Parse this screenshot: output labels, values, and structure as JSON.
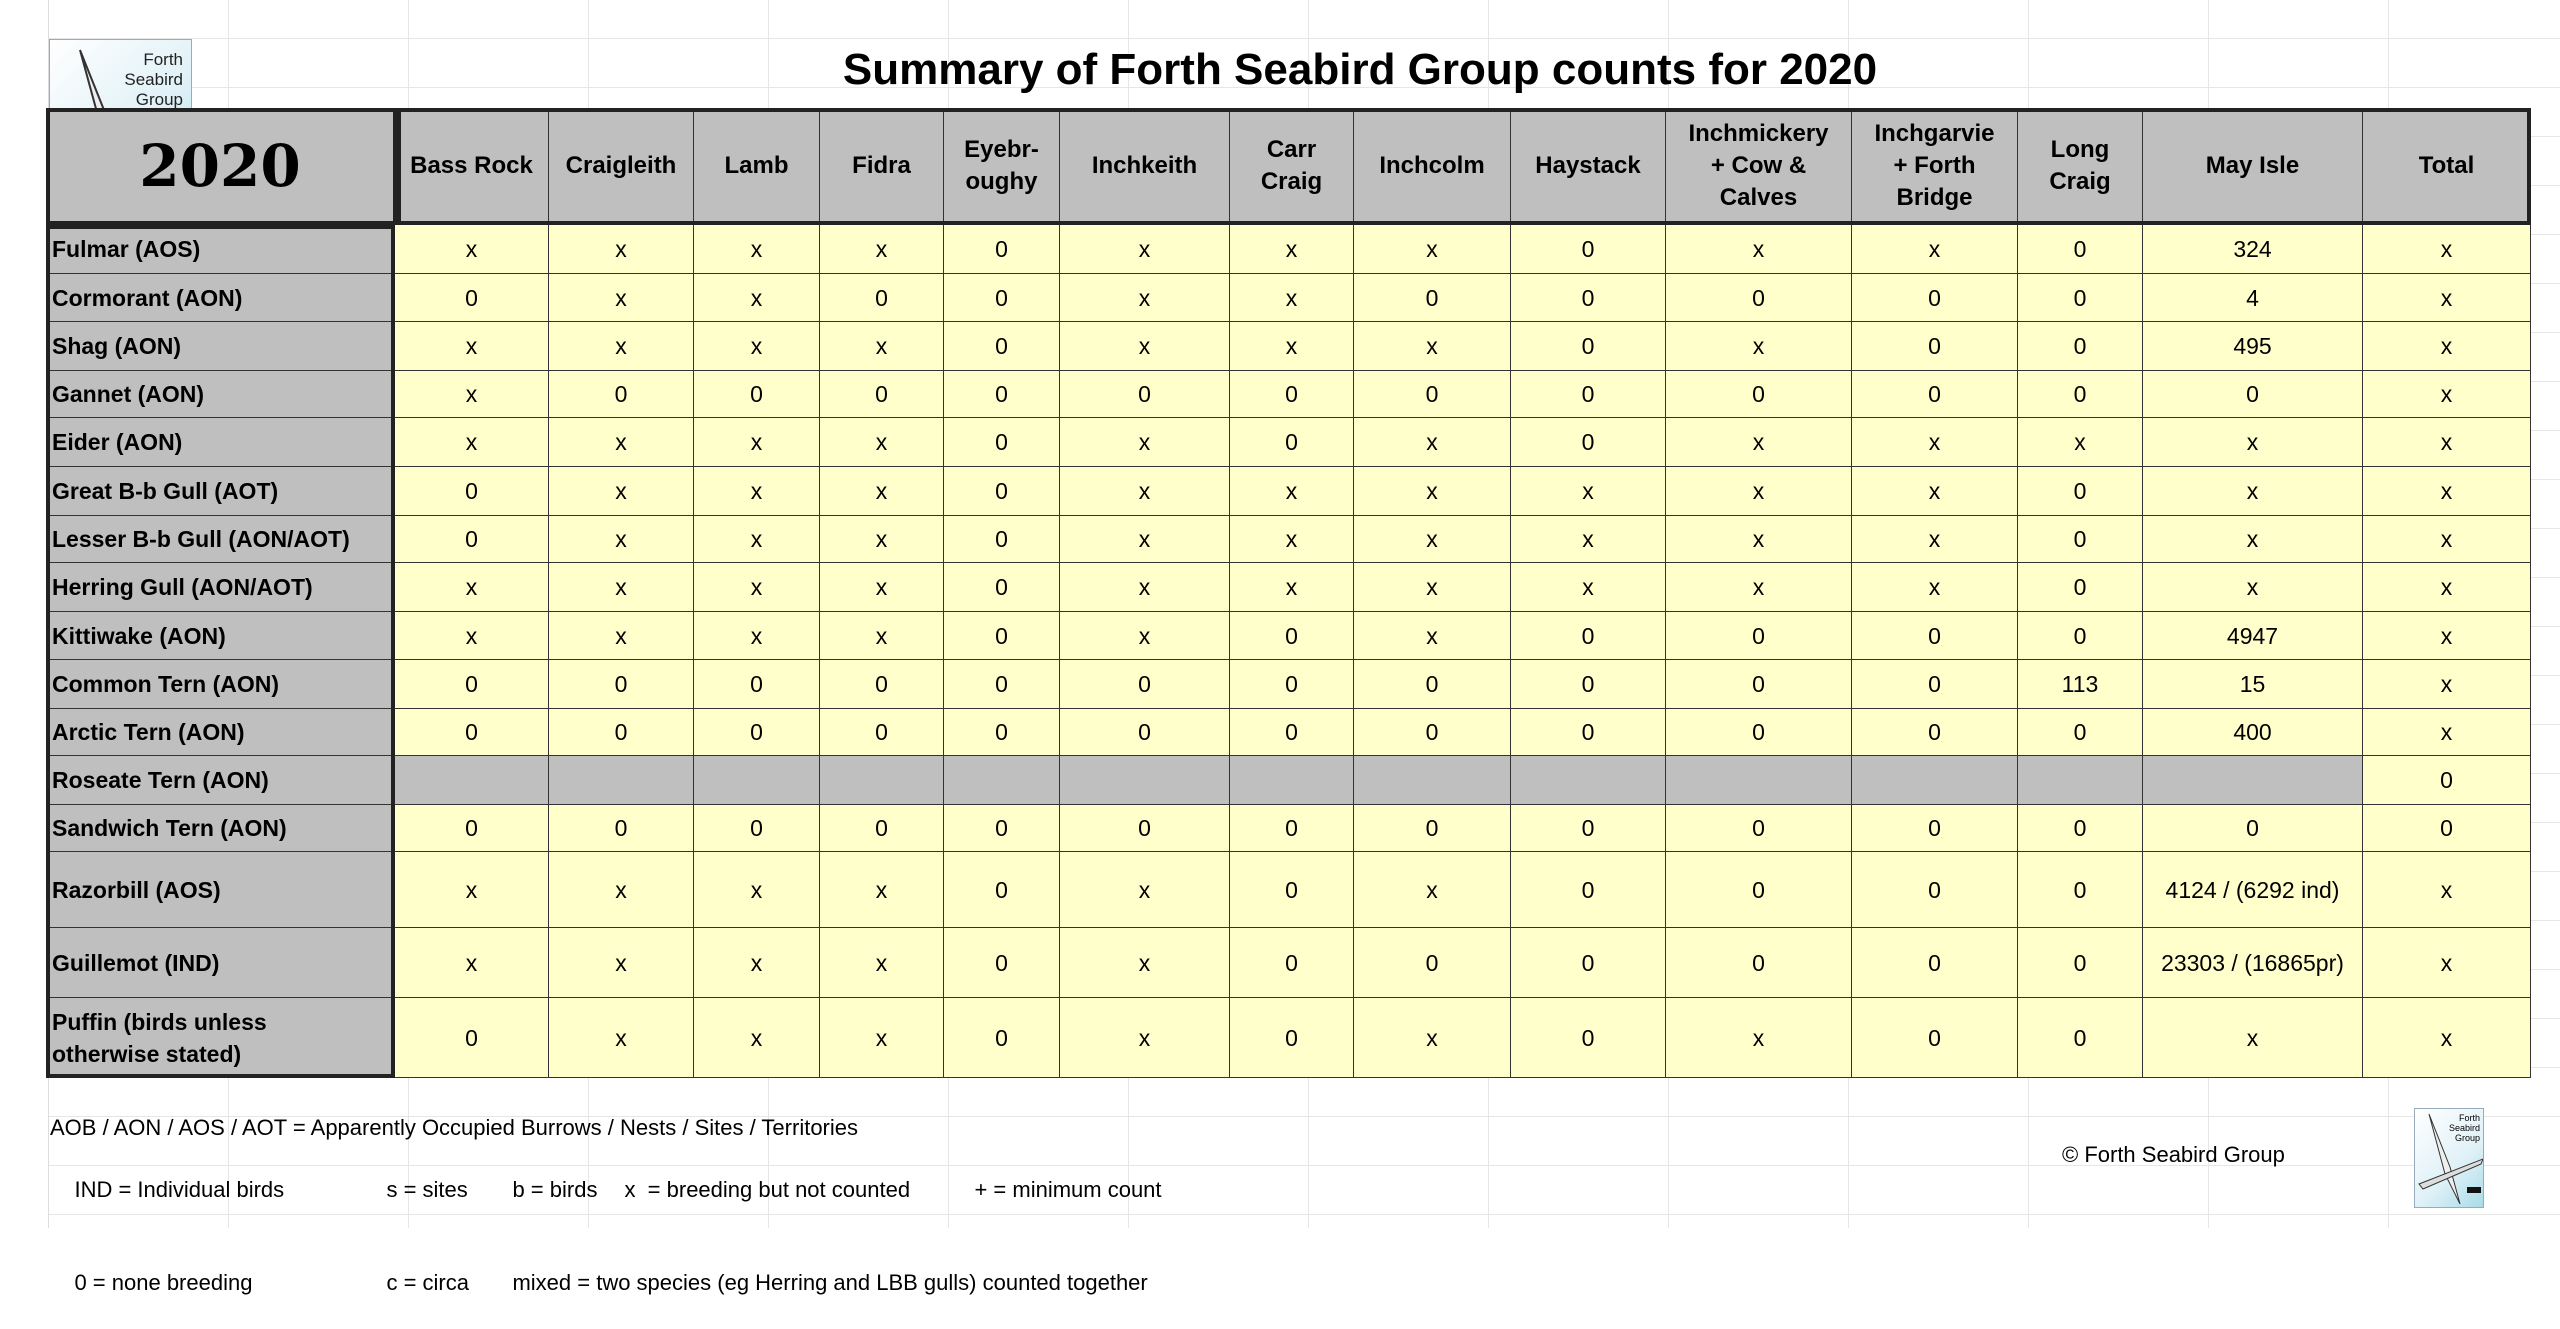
{
  "title": "Summary of Forth Seabird Group counts for 2020",
  "logo_text": "Forth Seabird Group",
  "year": "2020",
  "columns": [
    "Bass Rock",
    "Craigleith",
    "Lamb",
    "Fidra",
    "Eyebr-\noughy",
    "Inchkeith",
    "Carr\nCraig",
    "Inchcolm",
    "Haystack",
    "Inchmickery\n+ Cow &\nCalves",
    "Inchgarvie\n+ Forth\nBridge",
    "Long\nCraig",
    "May Isle",
    "Total"
  ],
  "rows": [
    {
      "label": "Fulmar (AOS)",
      "values": [
        "x",
        "x",
        "x",
        "x",
        "0",
        "x",
        "x",
        "x",
        "0",
        "x",
        "x",
        "0",
        "324",
        "x"
      ]
    },
    {
      "label": "Cormorant (AON)",
      "values": [
        "0",
        "x",
        "x",
        "0",
        "0",
        "x",
        "x",
        "0",
        "0",
        "0",
        "0",
        "0",
        "4",
        "x"
      ]
    },
    {
      "label": "Shag (AON)",
      "values": [
        "x",
        "x",
        "x",
        "x",
        "0",
        "x",
        "x",
        "x",
        "0",
        "x",
        "0",
        "0",
        "495",
        "x"
      ]
    },
    {
      "label": "Gannet (AON)",
      "values": [
        "x",
        "0",
        "0",
        "0",
        "0",
        "0",
        "0",
        "0",
        "0",
        "0",
        "0",
        "0",
        "0",
        "x"
      ]
    },
    {
      "label": "Eider (AON)",
      "values": [
        "x",
        "x",
        "x",
        "x",
        "0",
        "x",
        "0",
        "x",
        "0",
        "x",
        "x",
        "x",
        "x",
        "x"
      ]
    },
    {
      "label": "Great B-b Gull (AOT)",
      "values": [
        "0",
        "x",
        "x",
        "x",
        "0",
        "x",
        "x",
        "x",
        "x",
        "x",
        "x",
        "0",
        "x",
        "x"
      ]
    },
    {
      "label": "Lesser B-b Gull (AON/AOT)",
      "values": [
        "0",
        "x",
        "x",
        "x",
        "0",
        "x",
        "x",
        "x",
        "x",
        "x",
        "x",
        "0",
        "x",
        "x"
      ]
    },
    {
      "label": "Herring Gull (AON/AOT)",
      "values": [
        "x",
        "x",
        "x",
        "x",
        "0",
        "x",
        "x",
        "x",
        "x",
        "x",
        "x",
        "0",
        "x",
        "x"
      ]
    },
    {
      "label": "Kittiwake (AON)",
      "values": [
        "x",
        "x",
        "x",
        "x",
        "0",
        "x",
        "0",
        "x",
        "0",
        "0",
        "0",
        "0",
        "4947",
        "x"
      ]
    },
    {
      "label": "Common Tern (AON)",
      "values": [
        "0",
        "0",
        "0",
        "0",
        "0",
        "0",
        "0",
        "0",
        "0",
        "0",
        "0",
        "113",
        "15",
        "x"
      ]
    },
    {
      "label": "Arctic Tern (AON)",
      "values": [
        "0",
        "0",
        "0",
        "0",
        "0",
        "0",
        "0",
        "0",
        "0",
        "0",
        "0",
        "0",
        "400",
        "x"
      ]
    },
    {
      "label": "Roseate Tern (AON)",
      "values": [
        null,
        null,
        null,
        null,
        null,
        null,
        null,
        null,
        null,
        null,
        null,
        null,
        null,
        "0"
      ]
    },
    {
      "label": "Sandwich Tern (AON)",
      "values": [
        "0",
        "0",
        "0",
        "0",
        "0",
        "0",
        "0",
        "0",
        "0",
        "0",
        "0",
        "0",
        "0",
        "0"
      ]
    },
    {
      "label": "Razorbill (AOS)",
      "values": [
        "x",
        "x",
        "x",
        "x",
        "0",
        "x",
        "0",
        "x",
        "0",
        "0",
        "0",
        "0",
        "4124 / (6292 ind)",
        "x"
      ]
    },
    {
      "label": "Guillemot (IND)",
      "values": [
        "x",
        "x",
        "x",
        "x",
        "0",
        "x",
        "0",
        "0",
        "0",
        "0",
        "0",
        "0",
        "23303 / (16865pr)",
        "x"
      ]
    },
    {
      "label": "Puffin (birds unless\notherwise stated)",
      "values": [
        "0",
        "x",
        "x",
        "x",
        "0",
        "x",
        "0",
        "x",
        "0",
        "x",
        "0",
        "0",
        "x",
        "x"
      ]
    }
  ],
  "legend": {
    "line1": "AOB / AON / AOS / AOT = Apparently Occupied Burrows / Nests / Sites / Territories",
    "line2": [
      "IND = Individual birds",
      "s = sites",
      "b = birds",
      "x  = breeding but not counted",
      "+ = minimum count"
    ],
    "line3": [
      "0 = none breeding",
      "c = circa",
      "mixed = two species (eg Herring and LBB gulls) counted together"
    ]
  },
  "copyright": "© Forth Seabird Group",
  "colors": {
    "header_gray": "#bfbfbf",
    "cell_yellow": "#ffffcc",
    "border": "#222222"
  }
}
